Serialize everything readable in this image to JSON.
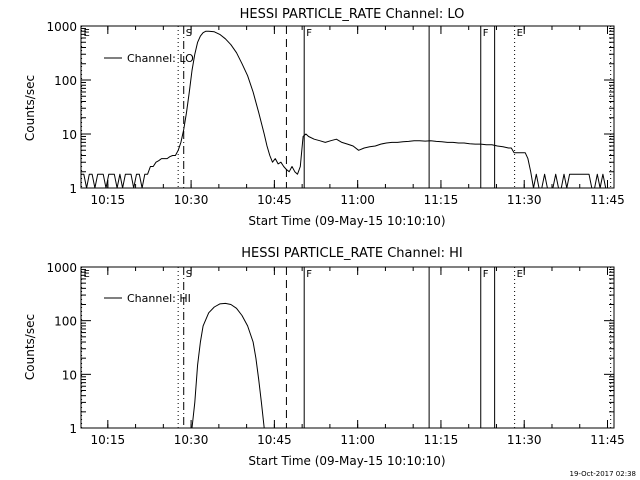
{
  "footer_timestamp": "19-Oct-2017 02:38",
  "chart_data": [
    {
      "type": "line",
      "title": "HESSI PARTICLE_RATE Channel: LO",
      "xlabel": "Start Time (09-May-15 10:10:10)",
      "ylabel": "Counts/sec",
      "yscale": "log",
      "ylim": [
        1,
        1000
      ],
      "xlim_minutes_since_start": [
        0,
        96
      ],
      "x_ticks": [
        {
          "t": 4.83,
          "label": "10:15"
        },
        {
          "t": 19.83,
          "label": "10:30"
        },
        {
          "t": 34.83,
          "label": "10:45"
        },
        {
          "t": 49.83,
          "label": "11:00"
        },
        {
          "t": 64.83,
          "label": "11:15"
        },
        {
          "t": 79.83,
          "label": "11:30"
        },
        {
          "t": 94.83,
          "label": "11:45"
        }
      ],
      "y_ticks": [
        {
          "v": 1,
          "label": "1"
        },
        {
          "v": 10,
          "label": "10"
        },
        {
          "v": 100,
          "label": "100"
        },
        {
          "v": 1000,
          "label": "1000"
        }
      ],
      "legend": {
        "position": "top-left",
        "entries": [
          "Channel: LO"
        ]
      },
      "markers": [
        {
          "t": 0.1,
          "label": "E",
          "style": "dotted"
        },
        {
          "t": 17.5,
          "label": "",
          "style": "dotted"
        },
        {
          "t": 18.5,
          "label": "S",
          "style": "dashdot"
        },
        {
          "t": 37.0,
          "label": "",
          "style": "dashed"
        },
        {
          "t": 40.2,
          "label": "F",
          "style": "solid"
        },
        {
          "t": 62.7,
          "label": "",
          "style": "solid"
        },
        {
          "t": 72.0,
          "label": "F",
          "style": "solid"
        },
        {
          "t": 74.5,
          "label": "",
          "style": "solid"
        },
        {
          "t": 78.1,
          "label": "E",
          "style": "dotted"
        },
        {
          "t": 95.4,
          "label": "",
          "style": "dotted"
        }
      ],
      "series": [
        {
          "name": "Channel: LO",
          "points": [
            [
              0,
              1.8
            ],
            [
              0.5,
              1.8
            ],
            [
              1,
              1.0
            ],
            [
              1.5,
              1.8
            ],
            [
              2,
              1.8
            ],
            [
              2.5,
              1.0
            ],
            [
              3,
              1.8
            ],
            [
              3.5,
              1.8
            ],
            [
              4,
              1.8
            ],
            [
              4.5,
              1.0
            ],
            [
              5,
              1.8
            ],
            [
              5.5,
              1.8
            ],
            [
              6,
              1.8
            ],
            [
              6.5,
              1.0
            ],
            [
              7,
              1.8
            ],
            [
              7.5,
              1.0
            ],
            [
              8,
              1.8
            ],
            [
              8.5,
              1.8
            ],
            [
              9,
              1.8
            ],
            [
              9.5,
              1.0
            ],
            [
              10,
              1.8
            ],
            [
              10.5,
              1.8
            ],
            [
              11,
              1.0
            ],
            [
              11.5,
              1.8
            ],
            [
              12,
              1.8
            ],
            [
              12.5,
              2.5
            ],
            [
              13,
              2.5
            ],
            [
              13.5,
              3.0
            ],
            [
              14,
              3.2
            ],
            [
              14.5,
              3.5
            ],
            [
              15,
              3.5
            ],
            [
              15.5,
              3.5
            ],
            [
              16,
              3.8
            ],
            [
              16.5,
              4.0
            ],
            [
              17,
              4.0
            ],
            [
              17.5,
              5.0
            ],
            [
              18,
              7.0
            ],
            [
              18.5,
              12
            ],
            [
              19,
              25
            ],
            [
              19.5,
              60
            ],
            [
              20,
              150
            ],
            [
              20.5,
              300
            ],
            [
              21,
              500
            ],
            [
              21.5,
              650
            ],
            [
              22,
              750
            ],
            [
              22.5,
              800
            ],
            [
              23,
              800
            ],
            [
              24,
              780
            ],
            [
              25,
              700
            ],
            [
              26,
              580
            ],
            [
              27,
              450
            ],
            [
              28,
              320
            ],
            [
              29,
              200
            ],
            [
              30,
              120
            ],
            [
              31,
              60
            ],
            [
              32,
              25
            ],
            [
              33,
              10
            ],
            [
              33.5,
              6
            ],
            [
              34,
              4
            ],
            [
              34.5,
              3
            ],
            [
              35,
              3.5
            ],
            [
              35.5,
              2.8
            ],
            [
              36,
              3.0
            ],
            [
              36.5,
              2.5
            ],
            [
              37,
              2.2
            ],
            [
              37.5,
              2.0
            ],
            [
              38,
              2.5
            ],
            [
              38.5,
              2.0
            ],
            [
              39,
              1.8
            ],
            [
              39.5,
              2.5
            ],
            [
              40,
              9.0
            ],
            [
              40.5,
              10
            ],
            [
              41,
              9.0
            ],
            [
              42,
              8.0
            ],
            [
              43,
              7.5
            ],
            [
              44,
              7.0
            ],
            [
              45,
              7.5
            ],
            [
              46,
              8.0
            ],
            [
              47,
              7.0
            ],
            [
              48,
              6.5
            ],
            [
              49,
              6.0
            ],
            [
              50,
              5.0
            ],
            [
              51,
              5.5
            ],
            [
              52,
              5.8
            ],
            [
              53,
              6.0
            ],
            [
              54,
              6.5
            ],
            [
              55,
              6.8
            ],
            [
              56,
              7.0
            ],
            [
              57,
              7.0
            ],
            [
              58,
              7.2
            ],
            [
              59,
              7.3
            ],
            [
              60,
              7.5
            ],
            [
              61,
              7.5
            ],
            [
              62,
              7.4
            ],
            [
              63,
              7.5
            ],
            [
              64,
              7.3
            ],
            [
              65,
              7.2
            ],
            [
              66,
              7.0
            ],
            [
              67,
              7.0
            ],
            [
              68,
              6.8
            ],
            [
              69,
              6.8
            ],
            [
              70,
              6.6
            ],
            [
              71,
              6.5
            ],
            [
              72,
              6.5
            ],
            [
              73,
              6.3
            ],
            [
              74,
              6.3
            ],
            [
              75,
              6.0
            ],
            [
              76,
              5.8
            ],
            [
              77,
              5.5
            ],
            [
              77.5,
              5.5
            ],
            [
              78,
              4.5
            ],
            [
              79,
              4.5
            ],
            [
              80,
              4.5
            ],
            [
              80.5,
              3.5
            ],
            [
              81,
              2.0
            ],
            [
              81.5,
              1.0
            ],
            [
              82,
              1.8
            ],
            [
              82.5,
              1.0
            ],
            [
              83,
              1.0
            ],
            [
              83.5,
              1.8
            ],
            [
              84,
              1.0
            ],
            [
              85,
              1.0
            ],
            [
              85.5,
              1.8
            ],
            [
              86,
              1.0
            ],
            [
              86.5,
              1.0
            ],
            [
              87,
              1.8
            ],
            [
              87.5,
              1.0
            ],
            [
              88,
              1.8
            ],
            [
              88.5,
              1.8
            ],
            [
              89,
              1.8
            ],
            [
              89.5,
              1.8
            ],
            [
              90,
              1.8
            ],
            [
              90.5,
              1.8
            ],
            [
              91,
              1.8
            ],
            [
              91.5,
              1.8
            ],
            [
              92,
              1.0
            ],
            [
              92.5,
              1.0
            ],
            [
              93,
              1.8
            ],
            [
              93.5,
              1.0
            ],
            [
              94,
              1.8
            ],
            [
              94.5,
              1.0
            ],
            [
              95,
              1.0
            ],
            [
              95.5,
              1.0
            ],
            [
              96,
              1.0
            ]
          ]
        }
      ]
    },
    {
      "type": "line",
      "title": "HESSI PARTICLE_RATE Channel: HI",
      "xlabel": "Start Time (09-May-15 10:10:10)",
      "ylabel": "Counts/sec",
      "yscale": "log",
      "ylim": [
        1,
        1000
      ],
      "xlim_minutes_since_start": [
        0,
        96
      ],
      "x_ticks": [
        {
          "t": 4.83,
          "label": "10:15"
        },
        {
          "t": 19.83,
          "label": "10:30"
        },
        {
          "t": 34.83,
          "label": "10:45"
        },
        {
          "t": 49.83,
          "label": "11:00"
        },
        {
          "t": 64.83,
          "label": "11:15"
        },
        {
          "t": 79.83,
          "label": "11:30"
        },
        {
          "t": 94.83,
          "label": "11:45"
        }
      ],
      "y_ticks": [
        {
          "v": 1,
          "label": "1"
        },
        {
          "v": 10,
          "label": "10"
        },
        {
          "v": 100,
          "label": "100"
        },
        {
          "v": 1000,
          "label": "1000"
        }
      ],
      "legend": {
        "position": "top-left",
        "entries": [
          "Channel: HI"
        ]
      },
      "markers": [
        {
          "t": 0.1,
          "label": "E",
          "style": "dotted"
        },
        {
          "t": 17.5,
          "label": "",
          "style": "dotted"
        },
        {
          "t": 18.5,
          "label": "S",
          "style": "dashdot"
        },
        {
          "t": 37.0,
          "label": "",
          "style": "dashed"
        },
        {
          "t": 40.2,
          "label": "F",
          "style": "solid"
        },
        {
          "t": 62.7,
          "label": "",
          "style": "solid"
        },
        {
          "t": 72.0,
          "label": "F",
          "style": "solid"
        },
        {
          "t": 74.5,
          "label": "",
          "style": "solid"
        },
        {
          "t": 78.1,
          "label": "E",
          "style": "dotted"
        },
        {
          "t": 95.4,
          "label": "",
          "style": "dotted"
        }
      ],
      "series": [
        {
          "name": "Channel: HI",
          "points": [
            [
              20.0,
              1.0
            ],
            [
              20.5,
              3
            ],
            [
              21,
              15
            ],
            [
              21.5,
              40
            ],
            [
              22,
              80
            ],
            [
              23,
              140
            ],
            [
              24,
              180
            ],
            [
              25,
              205
            ],
            [
              26,
              210
            ],
            [
              27,
              200
            ],
            [
              28,
              170
            ],
            [
              29,
              125
            ],
            [
              30,
              80
            ],
            [
              31,
              40
            ],
            [
              31.5,
              20
            ],
            [
              32,
              8
            ],
            [
              32.5,
              3
            ],
            [
              33,
              1.0
            ]
          ]
        }
      ]
    }
  ]
}
